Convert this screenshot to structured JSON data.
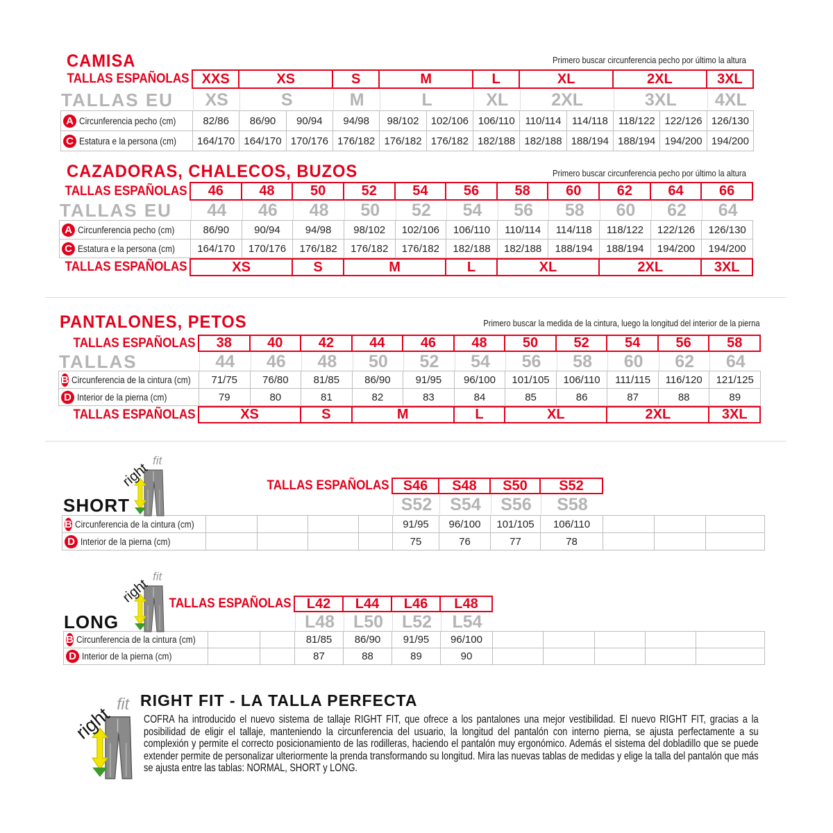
{
  "camisa": {
    "title": "CAMISA",
    "note": "Primero buscar circunferencia pecho por último la altura",
    "esp_label": "TALLAS ESPAÑOLAS",
    "esp": [
      {
        "label": "XXS",
        "span": 1
      },
      {
        "label": "XS",
        "span": 2
      },
      {
        "label": "S",
        "span": 1
      },
      {
        "label": "M",
        "span": 2
      },
      {
        "label": "L",
        "span": 1
      },
      {
        "label": "XL",
        "span": 2
      },
      {
        "label": "2XL",
        "span": 2
      },
      {
        "label": "3XL",
        "span": 1
      }
    ],
    "eu_label": "TALLAS EU",
    "eu": [
      {
        "label": "XS",
        "span": 1
      },
      {
        "label": "S",
        "span": 2
      },
      {
        "label": "M",
        "span": 1
      },
      {
        "label": "L",
        "span": 2
      },
      {
        "label": "XL",
        "span": 1
      },
      {
        "label": "2XL",
        "span": 2
      },
      {
        "label": "3XL",
        "span": 2
      },
      {
        "label": "4XL",
        "span": 1
      }
    ],
    "rows": [
      {
        "badge": "A",
        "label": "Circunferencia pecho (cm)",
        "values": [
          "82/86",
          "86/90",
          "90/94",
          "94/98",
          "98/102",
          "102/106",
          "106/110",
          "110/114",
          "114/118",
          "118/122",
          "122/126",
          "126/130"
        ]
      },
      {
        "badge": "C",
        "label": "Estatura e la persona (cm)",
        "values": [
          "164/170",
          "164/170",
          "170/176",
          "176/182",
          "176/182",
          "176/182",
          "182/188",
          "182/188",
          "188/194",
          "188/194",
          "194/200",
          "194/200"
        ]
      }
    ]
  },
  "cazadoras": {
    "title": "CAZADORAS, CHALECOS, BUZOS",
    "note": "Primero buscar circunferencia pecho por último la altura",
    "esp_label": "TALLAS ESPAÑOLAS",
    "esp": [
      {
        "label": "46",
        "span": 1
      },
      {
        "label": "48",
        "span": 1
      },
      {
        "label": "50",
        "span": 1
      },
      {
        "label": "52",
        "span": 1
      },
      {
        "label": "54",
        "span": 1
      },
      {
        "label": "56",
        "span": 1
      },
      {
        "label": "58",
        "span": 1
      },
      {
        "label": "60",
        "span": 1
      },
      {
        "label": "62",
        "span": 1
      },
      {
        "label": "64",
        "span": 1
      },
      {
        "label": "66",
        "span": 1
      }
    ],
    "eu_label": "TALLAS EU",
    "eu": [
      {
        "label": "44",
        "span": 1
      },
      {
        "label": "46",
        "span": 1
      },
      {
        "label": "48",
        "span": 1
      },
      {
        "label": "50",
        "span": 1
      },
      {
        "label": "52",
        "span": 1
      },
      {
        "label": "54",
        "span": 1
      },
      {
        "label": "56",
        "span": 1
      },
      {
        "label": "58",
        "span": 1
      },
      {
        "label": "60",
        "span": 1
      },
      {
        "label": "62",
        "span": 1
      },
      {
        "label": "64",
        "span": 1
      }
    ],
    "rows": [
      {
        "badge": "A",
        "label": "Circunferencia pecho (cm)",
        "values": [
          "86/90",
          "90/94",
          "94/98",
          "98/102",
          "102/106",
          "106/110",
          "110/114",
          "114/118",
          "118/122",
          "122/126",
          "126/130"
        ]
      },
      {
        "badge": "C",
        "label": "Estatura e la persona (cm)",
        "values": [
          "164/170",
          "170/176",
          "176/182",
          "176/182",
          "176/182",
          "182/188",
          "182/188",
          "188/194",
          "188/194",
          "194/200",
          "194/200"
        ]
      }
    ],
    "bottom_label": "TALLAS ESPAÑOLAS",
    "bottom": [
      {
        "label": "XS",
        "span": 2
      },
      {
        "label": "S",
        "span": 1
      },
      {
        "label": "M",
        "span": 2
      },
      {
        "label": "L",
        "span": 1
      },
      {
        "label": "XL",
        "span": 2
      },
      {
        "label": "2XL",
        "span": 2
      },
      {
        "label": "3XL",
        "span": 1
      }
    ]
  },
  "pantalones": {
    "title": "PANTALONES, PETOS",
    "note": "Primero buscar la medida de la cintura, luego la longitud del interior de la pierna",
    "esp_label": "TALLAS ESPAÑOLAS",
    "esp": [
      {
        "label": "38",
        "span": 1
      },
      {
        "label": "40",
        "span": 1
      },
      {
        "label": "42",
        "span": 1
      },
      {
        "label": "44",
        "span": 1
      },
      {
        "label": "46",
        "span": 1
      },
      {
        "label": "48",
        "span": 1
      },
      {
        "label": "50",
        "span": 1
      },
      {
        "label": "52",
        "span": 1
      },
      {
        "label": "54",
        "span": 1
      },
      {
        "label": "56",
        "span": 1
      },
      {
        "label": "58",
        "span": 1
      }
    ],
    "eu_label": "TALLAS",
    "eu": [
      {
        "label": "44",
        "span": 1
      },
      {
        "label": "46",
        "span": 1
      },
      {
        "label": "48",
        "span": 1
      },
      {
        "label": "50",
        "span": 1
      },
      {
        "label": "52",
        "span": 1
      },
      {
        "label": "54",
        "span": 1
      },
      {
        "label": "56",
        "span": 1
      },
      {
        "label": "58",
        "span": 1
      },
      {
        "label": "60",
        "span": 1
      },
      {
        "label": "62",
        "span": 1
      },
      {
        "label": "64",
        "span": 1
      }
    ],
    "rows": [
      {
        "badge": "B",
        "label": "Circunferencia de la cintura (cm)",
        "values": [
          "71/75",
          "76/80",
          "81/85",
          "86/90",
          "91/95",
          "96/100",
          "101/105",
          "106/110",
          "111/115",
          "116/120",
          "121/125"
        ]
      },
      {
        "badge": "D",
        "label": "Interior de la pierna (cm)",
        "values": [
          "79",
          "80",
          "81",
          "82",
          "83",
          "84",
          "85",
          "86",
          "87",
          "88",
          "89"
        ]
      }
    ],
    "bottom_label": "TALLAS ESPAÑOLAS",
    "bottom": [
      {
        "label": "XS",
        "span": 2
      },
      {
        "label": "S",
        "span": 1
      },
      {
        "label": "M",
        "span": 2
      },
      {
        "label": "L",
        "span": 1
      },
      {
        "label": "XL",
        "span": 2
      },
      {
        "label": "2XL",
        "span": 2
      },
      {
        "label": "3XL",
        "span": 1
      }
    ]
  },
  "short": {
    "title": "SHORT",
    "logo": "rightfit",
    "esp_label": "TALLAS ESPAÑOLAS",
    "esp": [
      {
        "label": "S46",
        "span": 1
      },
      {
        "label": "S48",
        "span": 1
      },
      {
        "label": "S50",
        "span": 1
      },
      {
        "label": "S52",
        "span": 1
      }
    ],
    "eu": [
      {
        "label": "S52",
        "span": 1
      },
      {
        "label": "S54",
        "span": 1
      },
      {
        "label": "S56",
        "span": 1
      },
      {
        "label": "S58",
        "span": 1
      }
    ],
    "rows": [
      {
        "badge": "B",
        "label": "Circunferencia de la cintura (cm)",
        "values": [
          "",
          "",
          "",
          "",
          "91/95",
          "96/100",
          "101/105",
          "106/110",
          "",
          "",
          ""
        ]
      },
      {
        "badge": "D",
        "label": "Interior de la pierna (cm)",
        "values": [
          "",
          "",
          "",
          "",
          "75",
          "76",
          "77",
          "78",
          "",
          "",
          ""
        ]
      }
    ]
  },
  "long": {
    "title": "LONG",
    "logo": "rightfit",
    "esp_label": "TALLAS ESPAÑOLAS",
    "esp": [
      {
        "label": "L42",
        "span": 1
      },
      {
        "label": "L44",
        "span": 1
      },
      {
        "label": "L46",
        "span": 1
      },
      {
        "label": "L48",
        "span": 1
      }
    ],
    "eu": [
      {
        "label": "L48",
        "span": 1
      },
      {
        "label": "L50",
        "span": 1
      },
      {
        "label": "L52",
        "span": 1
      },
      {
        "label": "L54",
        "span": 1
      }
    ],
    "rows": [
      {
        "badge": "B",
        "label": "Circunferencia de la cintura (cm)",
        "values": [
          "",
          "",
          "81/85",
          "86/90",
          "91/95",
          "96/100",
          "",
          "",
          "",
          "",
          ""
        ]
      },
      {
        "badge": "D",
        "label": "Interior de la pierna (cm)",
        "values": [
          "",
          "",
          "87",
          "88",
          "89",
          "90",
          "",
          "",
          "",
          "",
          ""
        ]
      }
    ]
  },
  "rightfit": {
    "logo": "rightfit",
    "title": "RIGHT FIT - LA TALLA PERFECTA",
    "text": "COFRA ha introducido el nuevo sistema de tallaje RIGHT FIT, que ofrece a los pantalones una mejor vestibilidad. El nuevo RIGHT FIT, gracias a la posibilidad de eligir el tallaje, manteniendo la circunferencia del usuario, la longitud del pantalón con interno pierna, se ajusta perfectamente a su complexión y permite el correcto posicionamiento de las rodilleras, haciendo el pantalón muy ergonómico. Además el sistema del dobladillo que se puede extender permite de personalizar ulteriormente la prenda transformando su longitud. Mira las nuevas tablas de medidas y elige la talla del pantalón que más se ajusta entre las tablas: NORMAL, SHORT y LONG."
  },
  "colors": {
    "red": "#e3001b",
    "gray": "#b4b4b4",
    "grid": "#bdbdbd"
  }
}
